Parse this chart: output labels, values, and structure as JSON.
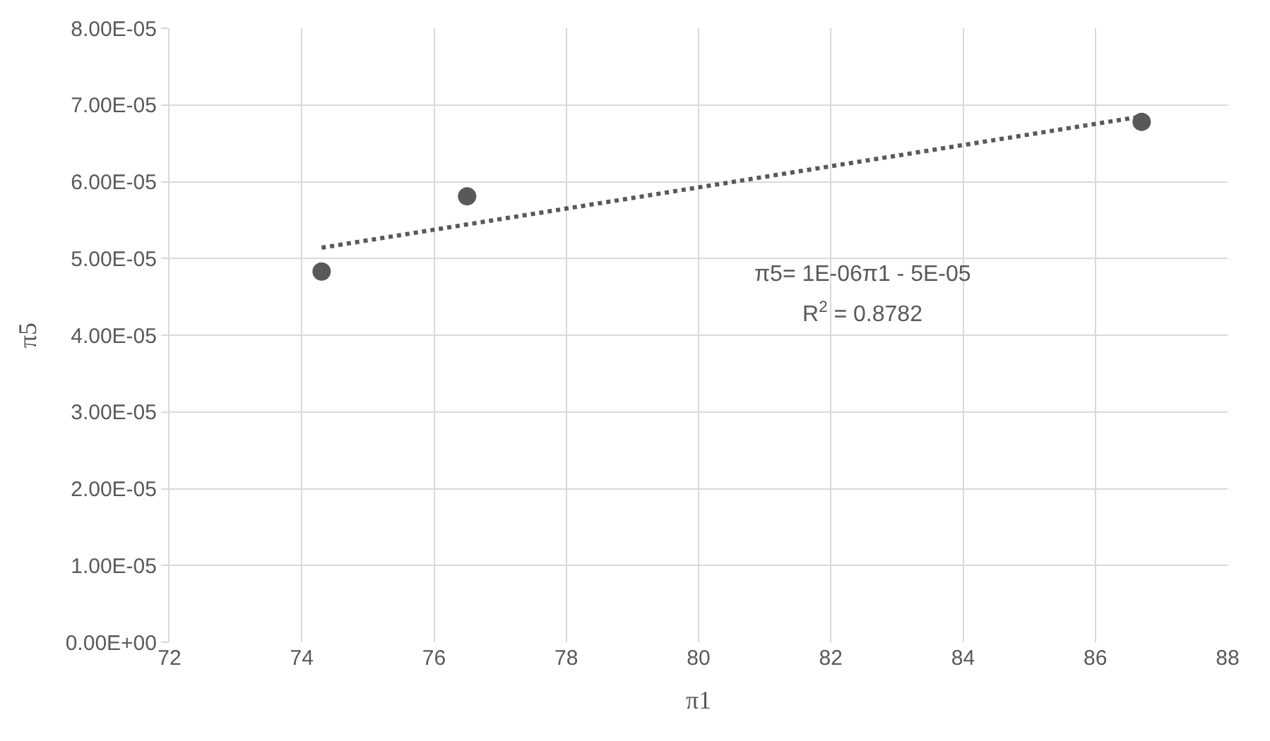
{
  "chart_data": {
    "type": "scatter",
    "xlabel": "π1",
    "ylabel": "π5",
    "xlim": [
      72,
      88
    ],
    "xticks": [
      72,
      74,
      76,
      78,
      80,
      82,
      84,
      86,
      88
    ],
    "ylim": [
      0,
      8e-05
    ],
    "yticks": [
      {
        "value": 0,
        "label": "0.00E+00"
      },
      {
        "value": 1e-05,
        "label": "1.00E-05"
      },
      {
        "value": 2e-05,
        "label": "2.00E-05"
      },
      {
        "value": 3e-05,
        "label": "3.00E-05"
      },
      {
        "value": 4e-05,
        "label": "4.00E-05"
      },
      {
        "value": 5e-05,
        "label": "5.00E-05"
      },
      {
        "value": 6e-05,
        "label": "6.00E-05"
      },
      {
        "value": 7e-05,
        "label": "7.00E-05"
      },
      {
        "value": 8e-05,
        "label": "8.00E-05"
      }
    ],
    "grid": true,
    "series": [
      {
        "color": "#595959",
        "marker": "circle",
        "x": [
          74.3,
          76.5,
          86.7
        ],
        "values": [
          4.83e-05,
          5.81e-05,
          6.78e-05
        ]
      },
      {
        "type": "line",
        "color": "#595959",
        "line_style": "dotted",
        "marker": "none",
        "x": [
          74.3,
          86.7
        ],
        "values": [
          5.14e-05,
          6.85e-05
        ]
      }
    ],
    "annotations": [
      "π5= 1E-06π1 - 5E-05",
      "R$^{2}$ = 0.8782"
    ]
  }
}
